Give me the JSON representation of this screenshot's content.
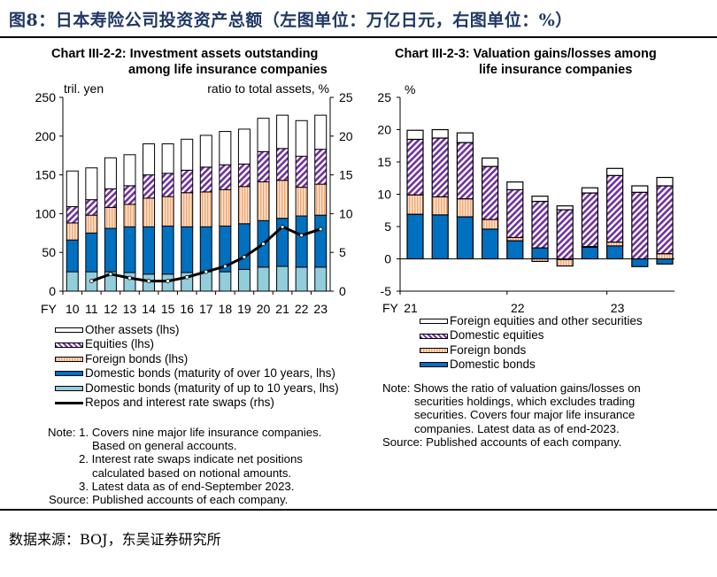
{
  "header": {
    "title": "图8：日本寿险公司投资资产总额（左图单位：万亿日元，右图单位：%）"
  },
  "source": "数据来源：BOJ，东吴证券研究所",
  "colors": {
    "other": "#ffffff",
    "equities": "#7030a0",
    "foreign_bonds": "#f4b183",
    "domestic_long": "#0070c0",
    "domestic_short": "#92cddc",
    "line": "#000000"
  },
  "chart_data": [
    {
      "type": "bar",
      "stacked": true,
      "title": "Chart III-2-2: Investment assets outstanding among life insurance companies",
      "title_lines": [
        "Chart III-2-2: Investment assets outstanding",
        "among life insurance companies"
      ],
      "xlabel_prefix": "FY",
      "ylabel_left": "tril. yen",
      "ylabel_right": "ratio to total assets, %",
      "ylim_left": [
        0,
        250
      ],
      "yticks_left": [
        0,
        50,
        100,
        150,
        200,
        250
      ],
      "ylim_right": [
        0,
        25
      ],
      "yticks_right": [
        0,
        5,
        10,
        15,
        20,
        25
      ],
      "grid": false,
      "legend_position": "bottom",
      "categories": [
        "10",
        "11",
        "12",
        "13",
        "14",
        "15",
        "16",
        "17",
        "18",
        "19",
        "20",
        "21",
        "22",
        "23"
      ],
      "series": [
        {
          "name": "Domestic bonds (maturity of up to 10 years, lhs)",
          "key": "domestic_short",
          "values": [
            25,
            25,
            25,
            24,
            22,
            22,
            24,
            25,
            25,
            28,
            31,
            32,
            31,
            31
          ]
        },
        {
          "name": "Domestic bonds (maturity of over 10 years, lhs)",
          "key": "domestic_long",
          "values": [
            41,
            50,
            56,
            59,
            61,
            62,
            59,
            58,
            59,
            59,
            60,
            62,
            66,
            67
          ]
        },
        {
          "name": "Foreign bonds (lhs)",
          "key": "foreign_bonds",
          "values": [
            22,
            23,
            27,
            29,
            37,
            38,
            44,
            45,
            47,
            48,
            50,
            49,
            37,
            40
          ]
        },
        {
          "name": "Equities (lhs)",
          "key": "equities",
          "values": [
            21,
            20,
            24,
            24,
            30,
            30,
            29,
            32,
            32,
            29,
            39,
            41,
            40,
            45
          ]
        },
        {
          "name": "Other assets (lhs)",
          "key": "other",
          "values": [
            46,
            41,
            40,
            40,
            40,
            38,
            40,
            41,
            43,
            45,
            43,
            43,
            46,
            44
          ]
        }
      ],
      "line_series": {
        "name": "Repos and interest rate swaps (rhs)",
        "axis": "right",
        "values": [
          null,
          1.3,
          2.2,
          1.7,
          1.3,
          1.3,
          1.8,
          2.5,
          3.2,
          4.4,
          6.1,
          8.3,
          7.2,
          8.0
        ]
      },
      "legend_order": [
        "Other assets (lhs)",
        "Equities (lhs)",
        "Foreign bonds (lhs)",
        "Domestic bonds (maturity of over 10 years, lhs)",
        "Domestic bonds (maturity of up to 10 years, lhs)",
        "Repos and interest rate swaps (rhs)"
      ],
      "notes": [
        "Note: 1. Covers nine major life insurance companies.",
        "Based on general accounts.",
        "2. Interest rate swaps indicate net positions",
        "calculated based on notional amounts.",
        "3. Latest data as of end-September 2023.",
        "Source: Published accounts of each company."
      ]
    },
    {
      "type": "bar",
      "stacked": true,
      "title": "Chart III-2-3: Valuation gains/losses among life insurance companies",
      "title_lines": [
        "Chart III-2-3: Valuation gains/losses among",
        "life insurance companies"
      ],
      "xlabel_prefix": "FY",
      "ylabel": "%",
      "ylim": [
        -5,
        25
      ],
      "yticks": [
        -5,
        0,
        5,
        10,
        15,
        20,
        25
      ],
      "grid": false,
      "legend_position": "bottom",
      "x_tick_labels": [
        {
          "label": "21",
          "index": 0
        },
        {
          "label": "22",
          "index": 4
        },
        {
          "label": "23",
          "index": 8
        }
      ],
      "series": [
        {
          "name": "Domestic bonds",
          "key": "domestic_long",
          "values": [
            6.9,
            6.8,
            6.5,
            4.6,
            2.8,
            1.7,
            -0.1,
            1.8,
            2.0,
            -1.2,
            -0.8
          ]
        },
        {
          "name": "Foreign bonds",
          "key": "foreign_bonds",
          "values": [
            3.0,
            2.8,
            2.8,
            1.5,
            0.5,
            -0.4,
            -1.0,
            0.1,
            0.6,
            0.0,
            0.8
          ]
        },
        {
          "name": "Domestic equities",
          "key": "equities",
          "values": [
            8.6,
            9.1,
            8.7,
            8.2,
            7.4,
            7.2,
            7.6,
            8.3,
            10.3,
            10.3,
            10.5
          ]
        },
        {
          "name": "Foreign equities and other securities",
          "key": "other",
          "values": [
            1.4,
            1.3,
            1.5,
            1.3,
            1.2,
            0.8,
            0.6,
            0.8,
            1.1,
            1.0,
            1.3
          ]
        }
      ],
      "legend_order": [
        "Foreign equities and other securities",
        "Domestic equities",
        "Foreign bonds",
        "Domestic bonds"
      ],
      "notes": [
        "Note: Shows the ratio of valuation gains/losses on",
        "securities holdings, which excludes trading",
        "securities. Covers four major life insurance",
        "companies. Latest data as of end-2023.",
        "Source: Published accounts of each company."
      ]
    }
  ]
}
